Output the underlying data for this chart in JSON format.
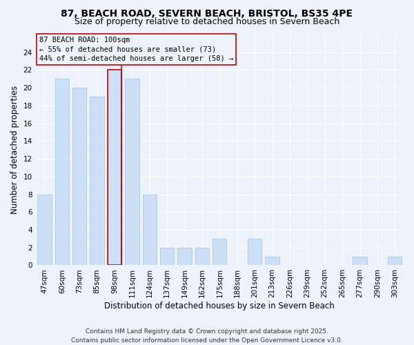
{
  "title": "87, BEACH ROAD, SEVERN BEACH, BRISTOL, BS35 4PE",
  "subtitle": "Size of property relative to detached houses in Severn Beach",
  "xlabel": "Distribution of detached houses by size in Severn Beach",
  "ylabel": "Number of detached properties",
  "categories": [
    "47sqm",
    "60sqm",
    "73sqm",
    "85sqm",
    "98sqm",
    "111sqm",
    "124sqm",
    "137sqm",
    "149sqm",
    "162sqm",
    "175sqm",
    "188sqm",
    "201sqm",
    "213sqm",
    "226sqm",
    "239sqm",
    "252sqm",
    "265sqm",
    "277sqm",
    "290sqm",
    "303sqm"
  ],
  "values": [
    8,
    21,
    20,
    19,
    22,
    21,
    8,
    2,
    2,
    2,
    3,
    0,
    3,
    1,
    0,
    0,
    0,
    0,
    1,
    0,
    1
  ],
  "bar_color": "#ccdff5",
  "bar_edgecolor": "#a8c8e8",
  "highlight_index": 4,
  "highlight_edgecolor": "#cc0000",
  "annotation_text": "87 BEACH ROAD: 100sqm\n← 55% of detached houses are smaller (73)\n44% of semi-detached houses are larger (58) →",
  "annotation_box_edgecolor": "#cc0000",
  "ylim": [
    0,
    26
  ],
  "yticks": [
    0,
    2,
    4,
    6,
    8,
    10,
    12,
    14,
    16,
    18,
    20,
    22,
    24
  ],
  "footnote": "Contains HM Land Registry data © Crown copyright and database right 2025.\nContains public sector information licensed under the Open Government Licence v3.0.",
  "bg_color": "#edf2fb",
  "grid_color": "#ffffff",
  "title_fontsize": 10,
  "subtitle_fontsize": 9,
  "axis_label_fontsize": 8.5,
  "tick_fontsize": 7.5,
  "annotation_fontsize": 7.5,
  "footnote_fontsize": 6.5
}
